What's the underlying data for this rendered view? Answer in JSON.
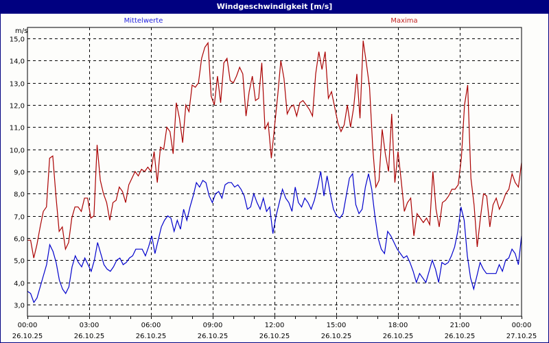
{
  "window": {
    "title": "Windgeschwindigkeit [m/s]"
  },
  "legend": {
    "mean_label": "Mittelwerte",
    "max_label": "Maxima"
  },
  "axis": {
    "y_unit": "m/s",
    "y_ticks": [
      "15,0",
      "14,0",
      "13,0",
      "12,0",
      "11,0",
      "10,0",
      "9,0",
      "8,0",
      "7,0",
      "6,0",
      "5,0",
      "4,0",
      "3,0"
    ],
    "x_ticks": [
      {
        "time": "00:00",
        "date": "26.10.25"
      },
      {
        "time": "03:00",
        "date": "26.10.25"
      },
      {
        "time": "06:00",
        "date": "26.10.25"
      },
      {
        "time": "09:00",
        "date": "26.10.25"
      },
      {
        "time": "12:00",
        "date": "26.10.25"
      },
      {
        "time": "15:00",
        "date": "26.10.25"
      },
      {
        "time": "18:00",
        "date": "26.10.25"
      },
      {
        "time": "21:00",
        "date": "26.10.25"
      },
      {
        "time": "00:00",
        "date": "27.10.25"
      }
    ]
  },
  "colors": {
    "title_bar": "#000080",
    "mean_line": "#0000cc",
    "max_line": "#aa0000",
    "grid": "#000000",
    "background": "#fdfdfb"
  },
  "chart_data": {
    "type": "line",
    "title": "Windgeschwindigkeit [m/s]",
    "xlabel": "",
    "ylabel": "m/s",
    "ylim": [
      2.5,
      15.5
    ],
    "xlim": [
      "26.10.25 00:00",
      "27.10.25 00:00"
    ],
    "grid": true,
    "legend_position": "top",
    "x_interval_minutes": 10,
    "categories_tick_labels": [
      "00:00 26.10.25",
      "03:00 26.10.25",
      "06:00 26.10.25",
      "09:00 26.10.25",
      "12:00 26.10.25",
      "15:00 26.10.25",
      "18:00 26.10.25",
      "21:00 26.10.25",
      "00:00 27.10.25"
    ],
    "series": [
      {
        "name": "Mittelwerte",
        "color": "#0000cc",
        "values": [
          3.6,
          3.5,
          3.1,
          3.3,
          3.8,
          4.3,
          4.8,
          5.7,
          5.4,
          4.9,
          4.1,
          3.7,
          3.5,
          3.8,
          4.7,
          5.2,
          4.9,
          4.7,
          5.1,
          4.8,
          4.5,
          5.0,
          5.8,
          5.3,
          4.8,
          4.6,
          4.5,
          4.7,
          5.0,
          5.1,
          4.8,
          4.9,
          5.1,
          5.2,
          5.5,
          5.5,
          5.5,
          5.2,
          5.6,
          6.1,
          5.3,
          5.9,
          6.5,
          6.8,
          7.0,
          6.9,
          6.3,
          6.8,
          6.4,
          7.3,
          6.8,
          7.4,
          7.9,
          8.5,
          8.3,
          8.6,
          8.5,
          7.9,
          7.6,
          8.0,
          8.1,
          7.8,
          8.4,
          8.5,
          8.5,
          8.3,
          8.4,
          8.2,
          7.9,
          7.3,
          7.4,
          8.0,
          7.6,
          7.3,
          7.8,
          7.2,
          7.4,
          6.2,
          7.0,
          7.6,
          8.2,
          7.8,
          7.6,
          7.2,
          8.3,
          7.6,
          7.4,
          7.8,
          7.6,
          7.3,
          7.7,
          8.3,
          9.0,
          7.9,
          8.8,
          8.0,
          7.3,
          7.0,
          6.9,
          7.1,
          7.9,
          8.7,
          8.9,
          7.5,
          7.1,
          7.3,
          8.3,
          8.9,
          8.2,
          7.0,
          6.0,
          5.5,
          5.3,
          6.3,
          6.1,
          5.8,
          5.5,
          5.3,
          5.1,
          5.2,
          4.9,
          4.5,
          4.0,
          4.4,
          4.2,
          4.0,
          4.5,
          5.0,
          4.6,
          4.0,
          4.9,
          4.8,
          4.9,
          5.2,
          5.6,
          6.3,
          7.4,
          6.8,
          5.2,
          4.2,
          3.7,
          4.3,
          4.9,
          4.6,
          4.4,
          4.4,
          4.4,
          4.4,
          4.8,
          4.5,
          5.0,
          5.1,
          5.5,
          5.3,
          4.8,
          6.1
        ]
      },
      {
        "name": "Maxima",
        "color": "#aa0000",
        "values": [
          5.9,
          5.9,
          5.1,
          5.7,
          6.5,
          7.2,
          7.4,
          9.6,
          9.7,
          7.9,
          6.3,
          6.5,
          5.5,
          5.8,
          6.9,
          7.4,
          7.4,
          7.2,
          7.8,
          7.8,
          6.9,
          7.0,
          10.2,
          8.6,
          8.0,
          7.6,
          6.8,
          7.6,
          7.7,
          8.3,
          8.1,
          7.6,
          8.4,
          8.7,
          9.0,
          8.8,
          9.1,
          9.0,
          9.2,
          9.0,
          9.9,
          8.5,
          10.1,
          10.0,
          11.0,
          10.8,
          9.8,
          12.1,
          11.4,
          10.3,
          12.0,
          11.7,
          12.9,
          12.8,
          13.0,
          14.1,
          14.6,
          14.8,
          12.4,
          12.0,
          13.3,
          12.1,
          13.9,
          14.1,
          13.1,
          13.0,
          13.3,
          13.7,
          13.4,
          11.5,
          12.6,
          13.3,
          12.2,
          12.3,
          13.9,
          10.9,
          11.2,
          9.6,
          11.0,
          12.4,
          14.0,
          13.2,
          11.6,
          11.9,
          12.0,
          11.5,
          12.1,
          12.2,
          12.0,
          11.8,
          11.5,
          13.4,
          14.4,
          13.6,
          14.4,
          12.3,
          12.6,
          11.9,
          11.2,
          10.8,
          11.1,
          12.0,
          11.0,
          11.9,
          13.4,
          11.4,
          14.9,
          13.9,
          12.8,
          10.1,
          8.3,
          8.6,
          10.9,
          9.8,
          9.0,
          11.6,
          8.5,
          9.9,
          8.6,
          7.2,
          7.6,
          7.8,
          6.1,
          7.1,
          6.9,
          6.7,
          6.9,
          6.6,
          9.0,
          7.3,
          6.5,
          7.6,
          7.7,
          7.9,
          8.2,
          8.2,
          8.4,
          9.6,
          12.0,
          12.9,
          8.7,
          7.5,
          5.6,
          6.9,
          8.0,
          7.9,
          6.5,
          7.5,
          7.8,
          7.3,
          7.6,
          8.0,
          8.2,
          8.9,
          8.5,
          8.3,
          9.4
        ]
      }
    ]
  }
}
